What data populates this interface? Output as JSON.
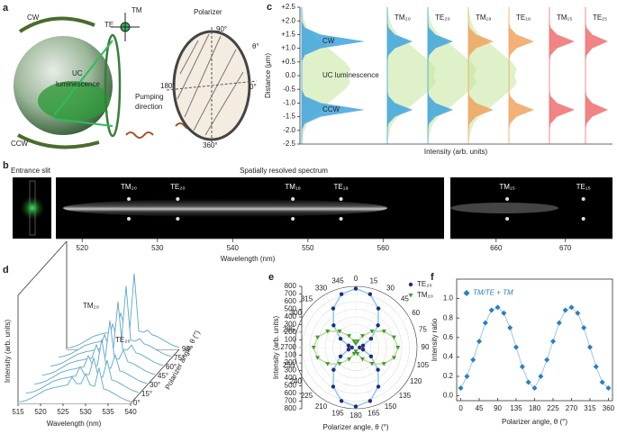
{
  "panel_labels": [
    "a",
    "b",
    "c",
    "d",
    "e",
    "f"
  ],
  "diagram": {
    "cw": "CW",
    "ccw": "CCW",
    "te": "TE",
    "tm": "TM",
    "uc_1": "UC",
    "uc_2": "luminescence",
    "pumping_1": "Pumping",
    "pumping_2": "direction",
    "polarizer": "Polarizer",
    "angle_90": "90°",
    "angle_0": "0°",
    "angle_180": "180°",
    "angle_360": "360°",
    "theta": "θ°"
  },
  "chart_data": [
    {
      "type": "spectrum-image",
      "title": "Spatially resolved spectrum",
      "inset_label": "Entrance slit",
      "xlabel": "Wavelength (nm)",
      "segments": [
        {
          "xlim": [
            516.5,
            568.1
          ],
          "xticks": [
            520,
            530,
            540,
            550,
            560
          ]
        },
        {
          "xlim": [
            653.4,
            676.8
          ],
          "xticks": [
            660,
            670
          ]
        }
      ],
      "peaks": [
        {
          "label": "TM₂₀",
          "x": 526.2
        },
        {
          "label": "TE₂₀",
          "x": 532.7
        },
        {
          "label": "TM₁₉",
          "x": 548
        },
        {
          "label": "TE₁₉",
          "x": 554.4
        },
        {
          "label": "TM₁₅",
          "x": 661.6
        },
        {
          "label": "TE₁₅",
          "x": 672.6
        }
      ]
    },
    {
      "type": "profile",
      "ylabel": "Distance (μm)",
      "xlabel": "Intensity (arb. units)",
      "ylim": [
        -2.5,
        2.5
      ],
      "yticks": [
        {
          "value": 2.5,
          "label": "+2.5"
        },
        {
          "value": 2,
          "label": "+2.0"
        },
        {
          "value": 1.5,
          "label": "+1.5"
        },
        {
          "value": 1,
          "label": "+1.0"
        },
        {
          "value": 0.5,
          "label": "+0.5"
        },
        {
          "value": 0,
          "label": "0.0"
        },
        -0.5,
        {
          "value": -1,
          "label": "-1.0"
        },
        -1.5,
        {
          "value": -2,
          "label": "-2.0"
        },
        -2.5
      ],
      "annotations": [
        "CW",
        "UC luminescence",
        "CCW"
      ],
      "y": [
        -2.5,
        -2.25,
        -2,
        -1.75,
        -1.5,
        -1.25,
        -1,
        -0.75,
        -0.5,
        -0.25,
        0,
        0.25,
        0.5,
        0.75,
        1,
        1.25,
        1.5,
        1.75,
        2,
        2.25,
        2.5
      ],
      "luminescence": {
        "color": "#c5e59b",
        "values": [
          0,
          0.02,
          0.05,
          0.1,
          0.2,
          0.35,
          0.5,
          0.65,
          0.8,
          0.9,
          0.85,
          0.9,
          0.8,
          0.65,
          0.5,
          0.35,
          0.2,
          0.1,
          0.05,
          0.02,
          0
        ]
      },
      "series": [
        {
          "color": "#40a4dd",
          "values": [
            0,
            0,
            0,
            0.05,
            0.3,
            1,
            0.3,
            0.05,
            0,
            0,
            0,
            0,
            0,
            0.05,
            0.3,
            1,
            0.3,
            0.05,
            0,
            0,
            0
          ]
        },
        {
          "name": "TM₂₀",
          "color": "#40a4dd",
          "values": [
            0,
            0,
            0,
            0.05,
            0.3,
            1,
            0.3,
            0.05,
            0,
            0,
            0,
            0,
            0,
            0.05,
            0.3,
            1,
            0.3,
            0.05,
            0,
            0,
            0
          ]
        },
        {
          "name": "TE₂₀",
          "color": "#40a4dd",
          "values": [
            0,
            0,
            0,
            0.05,
            0.3,
            1,
            0.3,
            0.05,
            0,
            0,
            0,
            0,
            0,
            0.05,
            0.3,
            1,
            0.3,
            0.05,
            0,
            0,
            0
          ]
        },
        {
          "name": "TM₁₉",
          "color": "#f0a35e",
          "values": [
            0,
            0,
            0,
            0.05,
            0.3,
            1,
            0.3,
            0.05,
            0,
            0,
            0,
            0,
            0,
            0.05,
            0.3,
            1,
            0.3,
            0.05,
            0,
            0,
            0
          ]
        },
        {
          "name": "TE₁₉",
          "color": "#f0a35e",
          "values": [
            0,
            0,
            0,
            0.05,
            0.3,
            1,
            0.3,
            0.05,
            0,
            0,
            0,
            0,
            0,
            0.05,
            0.3,
            1,
            0.3,
            0.05,
            0,
            0,
            0
          ]
        },
        {
          "name": "TM₁₅",
          "color": "#ef6f6f",
          "values": [
            0,
            0,
            0,
            0.05,
            0.3,
            1,
            0.3,
            0.05,
            0,
            0,
            0,
            0,
            0,
            0.05,
            0.3,
            1,
            0.3,
            0.05,
            0,
            0,
            0
          ]
        },
        {
          "name": "TE₁₅",
          "color": "#ef6f6f",
          "values": [
            0,
            0,
            0,
            0.05,
            0.3,
            1,
            0.3,
            0.05,
            0,
            0,
            0,
            0,
            0,
            0.05,
            0.3,
            1,
            0.3,
            0.05,
            0,
            0,
            0
          ]
        }
      ]
    },
    {
      "type": "waterfall",
      "xlabel": "Wavelength (nm)",
      "ylabel": "Intensity (arb. units)",
      "zlabel": "Polarizer angle, θ (°)",
      "xlim": [
        515,
        540
      ],
      "xticks": [
        515,
        520,
        525,
        530,
        535,
        540
      ],
      "ylim": [
        0,
        1.3
      ],
      "annotations": [
        "TM₂₀",
        "TE₂₀"
      ],
      "color": "#5ba7c9",
      "x": [
        515,
        516,
        517,
        518,
        519,
        520,
        521,
        522,
        523,
        524,
        525,
        526,
        527,
        528,
        529,
        530,
        531,
        532,
        533,
        534,
        535,
        536,
        537,
        538,
        539,
        540
      ],
      "series": [
        {
          "name": "0°",
          "values": [
            0.02,
            0.03,
            0.05,
            0.08,
            0.12,
            0.16,
            0.2,
            0.22,
            0.24,
            0.25,
            0.27,
            0.28,
            0.4,
            0.3,
            0.3,
            0.45,
            0.28,
            0.26,
            0.54,
            0.22,
            0.2,
            0.16,
            0.12,
            0.08,
            0.05,
            0.03
          ]
        },
        {
          "name": "15°",
          "values": [
            0.02,
            0.03,
            0.05,
            0.08,
            0.12,
            0.16,
            0.2,
            0.22,
            0.24,
            0.25,
            0.27,
            0.28,
            0.42,
            0.3,
            0.3,
            0.55,
            0.28,
            0.26,
            0.52,
            0.22,
            0.2,
            0.16,
            0.12,
            0.08,
            0.05,
            0.03
          ]
        },
        {
          "name": "30°",
          "values": [
            0.02,
            0.03,
            0.05,
            0.08,
            0.12,
            0.16,
            0.2,
            0.22,
            0.24,
            0.25,
            0.27,
            0.28,
            0.45,
            0.3,
            0.3,
            0.7,
            0.28,
            0.26,
            0.46,
            0.22,
            0.2,
            0.16,
            0.12,
            0.08,
            0.05,
            0.03
          ]
        },
        {
          "name": "45°",
          "values": [
            0.02,
            0.03,
            0.05,
            0.08,
            0.12,
            0.16,
            0.2,
            0.22,
            0.24,
            0.25,
            0.27,
            0.28,
            0.48,
            0.3,
            0.3,
            0.85,
            0.28,
            0.26,
            0.4,
            0.22,
            0.2,
            0.16,
            0.12,
            0.08,
            0.05,
            0.03
          ]
        },
        {
          "name": "60°",
          "values": [
            0.02,
            0.03,
            0.05,
            0.08,
            0.12,
            0.16,
            0.2,
            0.22,
            0.24,
            0.25,
            0.27,
            0.28,
            0.5,
            0.3,
            0.3,
            1.0,
            0.28,
            0.26,
            0.34,
            0.22,
            0.2,
            0.16,
            0.12,
            0.08,
            0.05,
            0.03
          ]
        },
        {
          "name": "75°",
          "values": [
            0.02,
            0.03,
            0.05,
            0.08,
            0.12,
            0.16,
            0.2,
            0.22,
            0.24,
            0.25,
            0.27,
            0.28,
            0.52,
            0.3,
            0.3,
            1.1,
            0.28,
            0.26,
            0.3,
            0.22,
            0.2,
            0.16,
            0.12,
            0.08,
            0.05,
            0.03
          ]
        },
        {
          "name": "90°",
          "values": [
            0.02,
            0.03,
            0.05,
            0.08,
            0.12,
            0.16,
            0.2,
            0.22,
            0.24,
            0.25,
            0.27,
            0.28,
            0.55,
            0.3,
            0.3,
            1.15,
            0.28,
            0.26,
            0.29,
            0.22,
            0.2,
            0.16,
            0.12,
            0.08,
            0.05,
            0.03
          ]
        }
      ]
    },
    {
      "type": "polar",
      "rlabel": "Intensity (arb. units)",
      "thetalabel": "Polarizer angle, θ (°)",
      "rlim": [
        0,
        800
      ],
      "rticks": [
        0,
        100,
        200,
        300,
        400,
        500,
        600,
        700,
        800
      ],
      "theta": [
        0,
        15,
        30,
        45,
        60,
        75,
        90,
        105,
        120,
        135,
        150,
        165,
        180,
        195,
        210,
        225,
        240,
        255,
        270,
        285,
        300,
        315,
        330,
        345
      ],
      "series": [
        {
          "name": "TE₂₀",
          "color": "#1f2d7a",
          "line_color": "#8cc8ec",
          "marker": "circle",
          "values": [
            770,
            722,
            590,
            410,
            230,
            98,
            50,
            98,
            230,
            410,
            590,
            722,
            770,
            722,
            590,
            410,
            230,
            98,
            50,
            98,
            230,
            410,
            590,
            722
          ]
        },
        {
          "name": "TM₂₀",
          "color": "#3f9a2f",
          "line_color": "#b9dc95",
          "marker": "triangle",
          "values": [
            50,
            83,
            175,
            300,
            425,
            517,
            550,
            517,
            425,
            300,
            175,
            83,
            50,
            83,
            175,
            300,
            425,
            517,
            550,
            517,
            425,
            300,
            175,
            83
          ]
        }
      ]
    },
    {
      "type": "scatter",
      "xlabel": "Polarizer angle, θ (°)",
      "ylabel": "Intensity ratio",
      "xlim": [
        -10,
        370
      ],
      "ylim": [
        -0.05,
        1.2
      ],
      "xticks": [
        0,
        45,
        90,
        135,
        180,
        225,
        270,
        315,
        360
      ],
      "yticks": [
        {
          "value": 0,
          "label": "0.0"
        },
        0.2,
        0.4,
        0.6,
        0.8,
        {
          "value": 1,
          "label": "1.0"
        }
      ],
      "x": [
        0,
        15,
        30,
        45,
        60,
        75,
        90,
        105,
        120,
        135,
        150,
        165,
        180,
        195,
        210,
        225,
        240,
        255,
        270,
        285,
        300,
        315,
        330,
        345,
        360
      ],
      "series": [
        {
          "name": "TM/TE + TM",
          "color": "#2a7fbf",
          "line_color": "#9fc6e4",
          "values": [
            0.08,
            0.2,
            0.37,
            0.56,
            0.75,
            0.88,
            0.91,
            0.85,
            0.7,
            0.5,
            0.3,
            0.14,
            0.08,
            0.2,
            0.37,
            0.56,
            0.75,
            0.88,
            0.91,
            0.85,
            0.7,
            0.5,
            0.3,
            0.14,
            0.08
          ]
        }
      ]
    }
  ]
}
